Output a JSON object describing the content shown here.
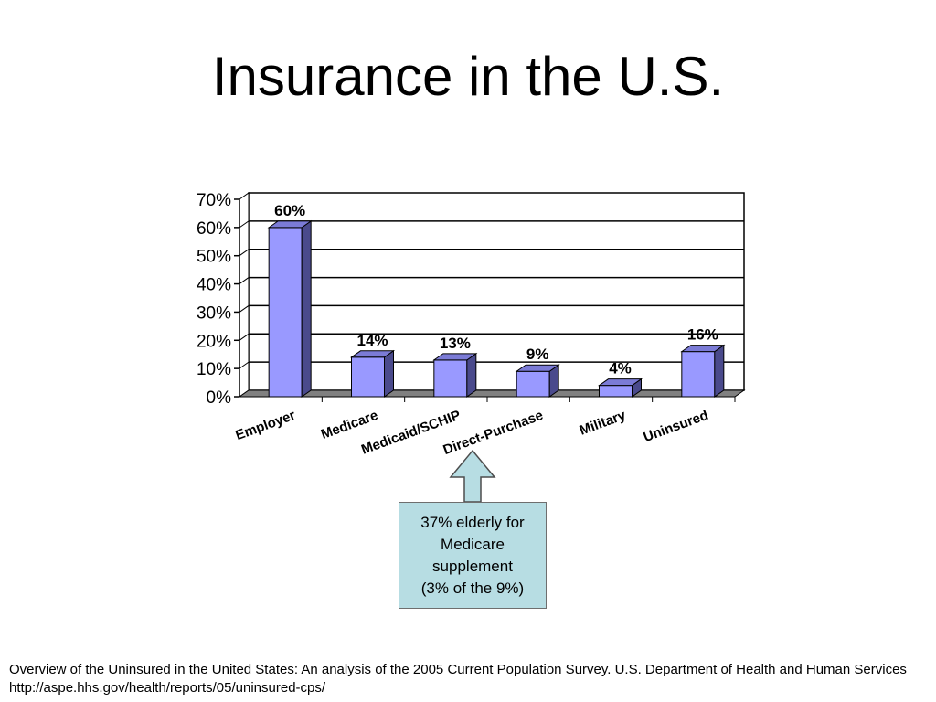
{
  "slide": {
    "title": "Insurance in the U.S."
  },
  "chart_data": {
    "type": "bar",
    "title": "",
    "xlabel": "",
    "ylabel": "",
    "categories": [
      "Employer",
      "Medicare",
      "Medicaid/SCHIP",
      "Direct-Purchase",
      "Military",
      "Uninsured"
    ],
    "values": [
      60,
      14,
      13,
      9,
      4,
      16
    ],
    "data_labels": [
      "60%",
      "14%",
      "13%",
      "9%",
      "4%",
      "16%"
    ],
    "y_ticks": [
      0,
      10,
      20,
      30,
      40,
      50,
      60,
      70
    ],
    "y_tick_labels": [
      "0%",
      "10%",
      "20%",
      "30%",
      "40%",
      "50%",
      "60%",
      "70%"
    ],
    "ylim": [
      0,
      70
    ],
    "grid": true,
    "legend": "none",
    "bar_color": "#9999ff",
    "bar_side_color": "#4a4a8c",
    "bar_top_color": "#7b7bd6"
  },
  "callout": {
    "lines": [
      "37% elderly for",
      "Medicare",
      "supplement",
      "(3% of the 9%)"
    ],
    "color": "#b7dde3",
    "points_to": "Direct-Purchase"
  },
  "footnote": {
    "text": "Overview of the Uninsured in the United States: An analysis of the 2005 Current Population Survey. U.S. Department of Health and Human Services http://aspe.hhs.gov/health/reports/05/uninsured-cps/"
  }
}
